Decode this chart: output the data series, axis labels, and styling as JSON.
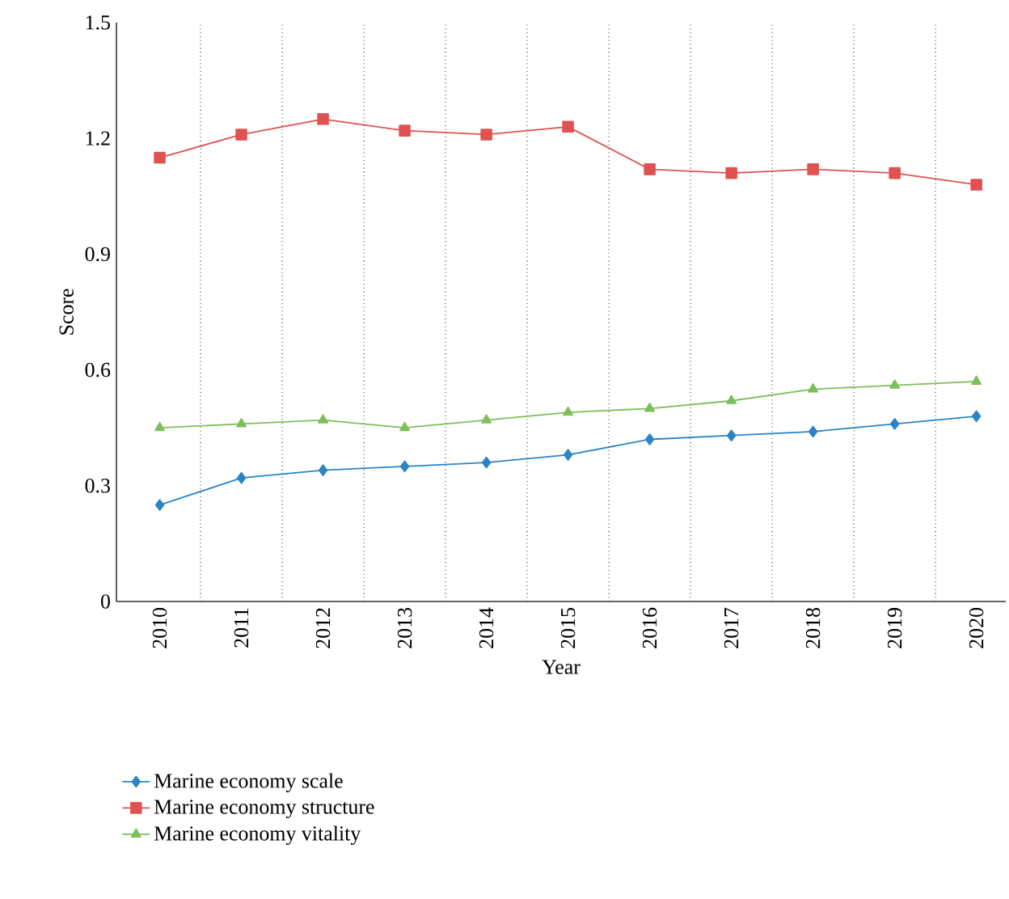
{
  "chart_data": {
    "type": "line",
    "xlabel": "Year",
    "ylabel": "Score",
    "categories": [
      "2010",
      "2011",
      "2012",
      "2013",
      "2014",
      "2015",
      "2016",
      "2017",
      "2018",
      "2019",
      "2020"
    ],
    "series": [
      {
        "name": "Marine economy scale",
        "color": "#2a84c6",
        "marker": "diamond",
        "values": [
          0.25,
          0.32,
          0.34,
          0.35,
          0.36,
          0.38,
          0.42,
          0.43,
          0.44,
          0.46,
          0.48
        ]
      },
      {
        "name": "Marine economy structure",
        "color": "#e05252",
        "marker": "square",
        "values": [
          1.15,
          1.21,
          1.25,
          1.22,
          1.21,
          1.23,
          1.12,
          1.11,
          1.12,
          1.11,
          1.08
        ]
      },
      {
        "name": "Marine economy vitality",
        "color": "#7dbf5a",
        "marker": "triangle",
        "values": [
          0.45,
          0.46,
          0.47,
          0.45,
          0.47,
          0.49,
          0.5,
          0.52,
          0.55,
          0.56,
          0.57
        ]
      }
    ],
    "ylim": [
      0,
      1.5
    ],
    "yticks": [
      0,
      0.3,
      0.6,
      0.9,
      1.2,
      1.5
    ],
    "grid": "x",
    "legend": "bottom",
    "line_style": "solid"
  }
}
